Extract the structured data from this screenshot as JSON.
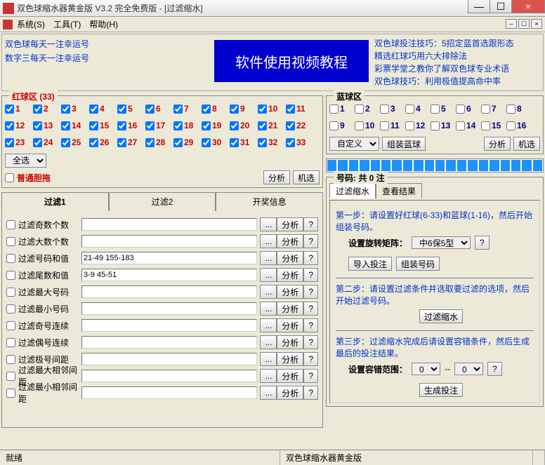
{
  "window": {
    "title": "双色球缩水器黄金版 V3.2    完全免费版 - [过滤缩水]",
    "min": "—",
    "max": "☐",
    "close": "×"
  },
  "menu": {
    "system": "系统(S)",
    "tools": "工具(T)",
    "help": "帮助(H)"
  },
  "top": {
    "link1": "双色球每天一注幸运号",
    "link2": "数字三每天一注幸运号",
    "banner": "软件使用视频教程",
    "r1": "双色球投注技巧：5招定蓝首选跟形态",
    "r2": "精选红球巧用六大排除法",
    "r3": "彩票学堂之教你了解双色球专业术语",
    "r4": "双色球技巧：利用极值提高命中率"
  },
  "red": {
    "legend": "红球区 (33)",
    "nums": [
      "1",
      "2",
      "3",
      "4",
      "5",
      "6",
      "7",
      "8",
      "9",
      "10",
      "11",
      "12",
      "13",
      "14",
      "15",
      "16",
      "17",
      "18",
      "19",
      "20",
      "21",
      "22",
      "23",
      "24",
      "25",
      "26",
      "27",
      "28",
      "29",
      "30",
      "31",
      "32",
      "33"
    ],
    "selectall": "全选",
    "ptdt": "普通胆拖",
    "analyze": "分析",
    "random": "机选"
  },
  "blue": {
    "legend": "蓝球区",
    "nums": [
      "1",
      "2",
      "3",
      "4",
      "5",
      "6",
      "7",
      "8",
      "9",
      "10",
      "11",
      "12",
      "13",
      "14",
      "15",
      "16"
    ],
    "custom": "自定义",
    "assemble": "组装蓝球",
    "analyze": "分析",
    "random": "机选"
  },
  "tabs": {
    "t1": "过滤1",
    "t2": "过滤2",
    "t3": "开奖信息"
  },
  "filters": [
    {
      "label": "过滤奇数个数",
      "val": ""
    },
    {
      "label": "过滤大数个数",
      "val": ""
    },
    {
      "label": "过滤号码和值",
      "val": "21-49 155-183"
    },
    {
      "label": "过滤尾数和值",
      "val": "3-9 45-51"
    },
    {
      "label": "过滤最大号码",
      "val": ""
    },
    {
      "label": "过滤最小号码",
      "val": ""
    },
    {
      "label": "过滤奇号连续",
      "val": ""
    },
    {
      "label": "过滤偶号连续",
      "val": ""
    },
    {
      "label": "过滤极号间距",
      "val": ""
    },
    {
      "label": "过滤最大相邻间距",
      "val": ""
    },
    {
      "label": "过滤最小相邻间距",
      "val": ""
    }
  ],
  "filterbtns": {
    "dots": "...",
    "analyze": "分析",
    "help": "?"
  },
  "right": {
    "countlabel": "号码: 共 0 注",
    "tab1": "过滤缩水",
    "tab2": "查看结果",
    "step1": "第一步：请设置好红球(6-33)和蓝球(1-16)，然后开始组装号码。",
    "rotateLabel": "设置旋转矩阵：",
    "rotateSel": "中6保5型",
    "help": "?",
    "import": "导入投注",
    "assemble": "组装号码",
    "step2": "第二步：请设置过滤条件并选取要过滤的选项，然后开始过滤号码。",
    "filterbtn": "过滤缩水",
    "step3": "第三步：过滤缩水完成后请设置容错条件，然后生成最后的投注结果。",
    "tolLabel": "设置容错范围：",
    "tolFrom": "0",
    "tolDash": "--",
    "tolTo": "0",
    "gen": "生成投注"
  },
  "status": {
    "ready": "就绪",
    "center": "双色球缩水器黄金版"
  }
}
